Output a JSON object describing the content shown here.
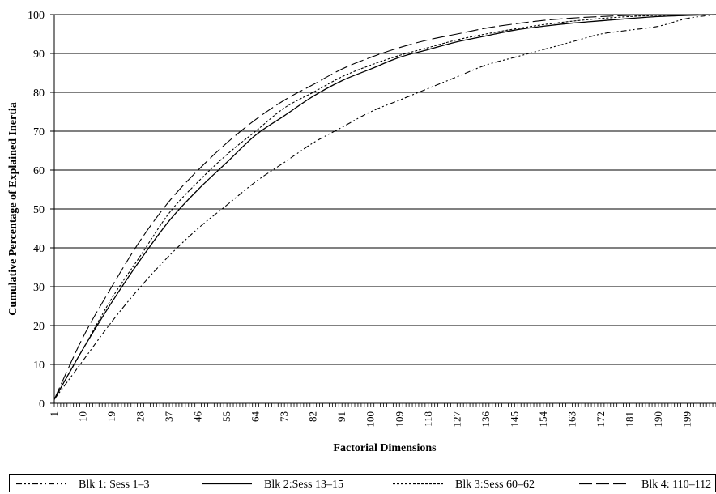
{
  "chart_data": {
    "type": "line",
    "title": "",
    "xlabel": "Factorial Dimensions",
    "ylabel": "Cumulative Percentage of Explained Inertia",
    "ylim": [
      0,
      100
    ],
    "xlim": [
      1,
      208
    ],
    "yticks": [
      0,
      10,
      20,
      30,
      40,
      50,
      60,
      70,
      80,
      90,
      100
    ],
    "xtick_labels": [
      1,
      10,
      19,
      28,
      37,
      46,
      55,
      64,
      73,
      82,
      91,
      100,
      109,
      118,
      127,
      136,
      145,
      154,
      163,
      172,
      181,
      190,
      199
    ],
    "grid": "horizontal",
    "legend_position": "bottom",
    "x": [
      1,
      10,
      19,
      28,
      37,
      46,
      55,
      64,
      73,
      82,
      91,
      100,
      109,
      118,
      127,
      136,
      145,
      154,
      163,
      172,
      181,
      190,
      199,
      208
    ],
    "series": [
      {
        "name": "Blk 1: Sess 1–3",
        "dash": "dashdotdot",
        "values": [
          1,
          11,
          21,
          30,
          38,
          45,
          51,
          57,
          62,
          67,
          71,
          75,
          78,
          81,
          84,
          87,
          89,
          91,
          93,
          95,
          96,
          97,
          99,
          100
        ]
      },
      {
        "name": "Blk 2:Sess 13–15",
        "dash": "solid",
        "values": [
          1,
          14,
          26,
          37,
          47,
          55,
          62,
          69,
          74,
          79,
          83,
          86,
          89,
          91,
          93,
          94.5,
          96,
          97,
          97.8,
          98.4,
          99,
          99.5,
          99.8,
          100
        ]
      },
      {
        "name": "Blk 3:Sess 60–62",
        "dash": "dotted",
        "values": [
          1,
          14,
          27,
          38,
          49,
          57,
          64,
          70,
          76,
          80,
          84,
          87,
          89.5,
          91.5,
          93.5,
          95,
          96.3,
          97.4,
          98.3,
          99,
          99.5,
          99.8,
          99.9,
          100
        ]
      },
      {
        "name": "Blk 4: 110–112",
        "dash": "longdash",
        "values": [
          1,
          17,
          30,
          42,
          52,
          60,
          67,
          73,
          78,
          82,
          86,
          89,
          91.5,
          93.5,
          95,
          96.5,
          97.6,
          98.5,
          99.1,
          99.5,
          99.8,
          99.9,
          100,
          100
        ]
      }
    ]
  }
}
